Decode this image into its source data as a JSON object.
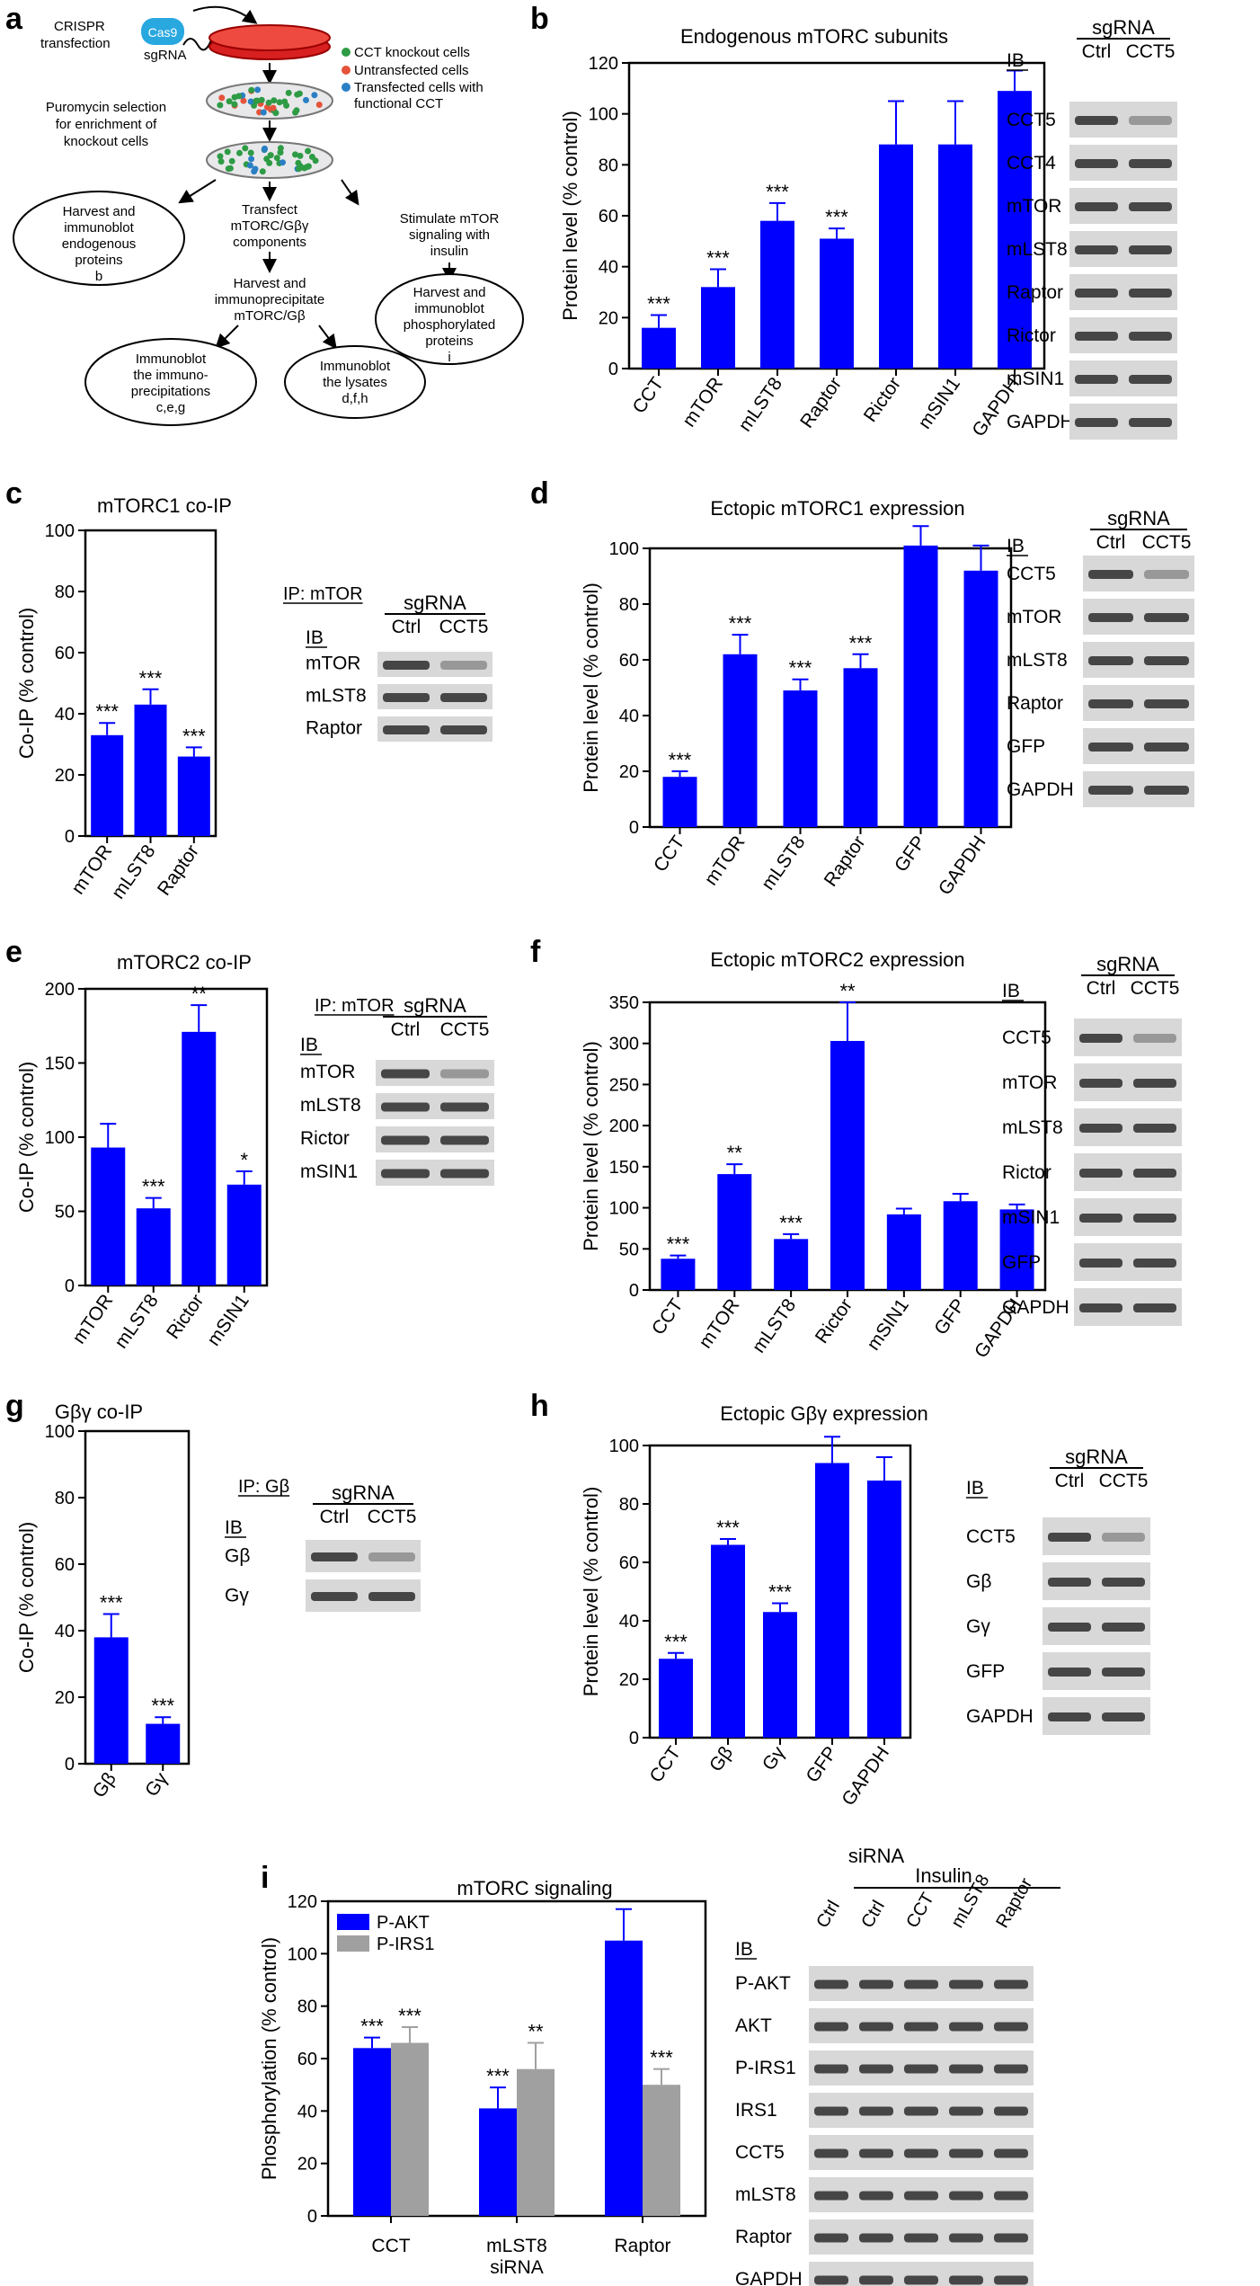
{
  "panel_letters": [
    "a",
    "b",
    "c",
    "d",
    "e",
    "f",
    "g",
    "h",
    "i"
  ],
  "workflow": {
    "crispr": [
      "CRISPR",
      "transfection"
    ],
    "cas9": "Cas9",
    "sgrna": "sgRNA",
    "legend": [
      "CCT knockout cells",
      "Untransfected cells",
      "Transfected cells with",
      "functional CCT"
    ],
    "legend_colors": [
      "#2e9b45",
      "#e5533a",
      "#2a7fc4"
    ],
    "puromycin": [
      "Puromycin selection",
      "for enrichment of",
      "knockout cells"
    ],
    "transfect": [
      "Transfect",
      "mTORC/Gβγ",
      "components"
    ],
    "harvest_ip": [
      "Harvest and",
      "immunoprecipitate",
      "mTORC/Gβ"
    ],
    "stim": [
      "Stimulate mTOR",
      "signaling with",
      "insulin"
    ],
    "oval_endog": [
      "Harvest and",
      "immunoblot",
      "endogenous",
      "proteins",
      "b"
    ],
    "oval_phos": [
      "Harvest and",
      "immunoblot",
      "phosphorylated",
      "proteins",
      "i"
    ],
    "oval_ip": [
      "Immunoblot",
      "the immuno-",
      "precipitations",
      "c,e,g"
    ],
    "oval_lys": [
      "Immunoblot",
      "the lysates",
      "d,f,h"
    ]
  },
  "blots": {
    "b": {
      "header": "sgRNA",
      "ib": "IB",
      "cols": [
        "Ctrl",
        "CCT5"
      ],
      "rows": [
        "CCT5",
        "CCT4",
        "mTOR",
        "mLST8",
        "Raptor",
        "Rictor",
        "mSIN1",
        "GAPDH"
      ]
    },
    "c": {
      "ip": "IP: mTOR",
      "header": "sgRNA",
      "ib": "IB",
      "cols": [
        "Ctrl",
        "CCT5"
      ],
      "rows": [
        "mTOR",
        "mLST8",
        "Raptor"
      ]
    },
    "d": {
      "header": "sgRNA",
      "ib": "IB",
      "cols": [
        "Ctrl",
        "CCT5"
      ],
      "rows": [
        "CCT5",
        "mTOR",
        "mLST8",
        "Raptor",
        "GFP",
        "GAPDH"
      ]
    },
    "e": {
      "ip": "IP: mTOR",
      "header": "sgRNA",
      "ib": "IB",
      "cols": [
        "Ctrl",
        "CCT5"
      ],
      "rows": [
        "mTOR",
        "mLST8",
        "Rictor",
        "mSIN1"
      ]
    },
    "f": {
      "header": "sgRNA",
      "ib": "IB",
      "cols": [
        "Ctrl",
        "CCT5"
      ],
      "rows": [
        "CCT5",
        "mTOR",
        "mLST8",
        "Rictor",
        "mSIN1",
        "GFP",
        "GAPDH"
      ]
    },
    "g": {
      "ip": "IP: Gβ",
      "header": "sgRNA",
      "ib": "IB",
      "cols": [
        "Ctrl",
        "CCT5"
      ],
      "rows": [
        "Gβ",
        "Gγ"
      ]
    },
    "h": {
      "header": "sgRNA",
      "ib": "IB",
      "cols": [
        "Ctrl",
        "CCT5"
      ],
      "rows": [
        "CCT5",
        "Gβ",
        "Gγ",
        "GFP",
        "GAPDH"
      ]
    },
    "i": {
      "header": "siRNA",
      "sub": "Insulin",
      "ib": "IB",
      "cols": [
        "Ctrl",
        "Ctrl",
        "CCT",
        "mLST8",
        "Raptor"
      ],
      "rows": [
        "P-AKT",
        "AKT",
        "P-IRS1",
        "IRS1",
        "CCT5",
        "mLST8",
        "Raptor",
        "GAPDH"
      ]
    }
  },
  "chart_data": [
    {
      "id": "b",
      "type": "bar",
      "title": "Endogenous mTORC subunits",
      "ylabel": "Protein level (% control)",
      "ylim": [
        0,
        120
      ],
      "yticks": [
        0,
        20,
        40,
        60,
        80,
        100,
        120
      ],
      "categories": [
        "CCT",
        "mTOR",
        "mLST8",
        "Raptor",
        "Rictor",
        "mSIN1",
        "GAPDH"
      ],
      "values": [
        16,
        32,
        58,
        51,
        88,
        88,
        109
      ],
      "errors": [
        5,
        7,
        7,
        4,
        17,
        17,
        8
      ],
      "sig": [
        "***",
        "***",
        "***",
        "***",
        "",
        "",
        ""
      ],
      "color": "#0000ff"
    },
    {
      "id": "c",
      "type": "bar",
      "title": "mTORC1 co-IP",
      "ylabel": "Co-IP (% control)",
      "ylim": [
        0,
        100
      ],
      "yticks": [
        0,
        20,
        40,
        60,
        80,
        100
      ],
      "categories": [
        "mTOR",
        "mLST8",
        "Raptor"
      ],
      "values": [
        33,
        43,
        26
      ],
      "errors": [
        4,
        5,
        3
      ],
      "sig": [
        "***",
        "***",
        "***"
      ],
      "color": "#0000ff"
    },
    {
      "id": "d",
      "type": "bar",
      "title": "Ectopic mTORC1 expression",
      "ylabel": "Protein level (% control)",
      "ylim": [
        0,
        100
      ],
      "yticks": [
        0,
        20,
        40,
        60,
        80,
        100
      ],
      "categories": [
        "CCT",
        "mTOR",
        "mLST8",
        "Raptor",
        "GFP",
        "GAPDH"
      ],
      "values": [
        18,
        62,
        49,
        57,
        101,
        92
      ],
      "errors": [
        2,
        7,
        4,
        5,
        7,
        9
      ],
      "sig": [
        "***",
        "***",
        "***",
        "***",
        "",
        ""
      ],
      "color": "#0000ff"
    },
    {
      "id": "e",
      "type": "bar",
      "title": "mTORC2 co-IP",
      "ylabel": "Co-IP (% control)",
      "ylim": [
        0,
        200
      ],
      "yticks": [
        0,
        50,
        100,
        150,
        200
      ],
      "categories": [
        "mTOR",
        "mLST8",
        "Rictor",
        "mSIN1"
      ],
      "values": [
        93,
        52,
        171,
        68
      ],
      "errors": [
        16,
        7,
        18,
        9
      ],
      "sig": [
        "",
        "***",
        "**",
        "*"
      ],
      "color": "#0000ff"
    },
    {
      "id": "f",
      "type": "bar",
      "title": "Ectopic mTORC2 expression",
      "ylabel": "Protein level (% control)",
      "ylim": [
        0,
        350
      ],
      "yticks": [
        0,
        50,
        100,
        150,
        200,
        250,
        300,
        350
      ],
      "categories": [
        "CCT",
        "mTOR",
        "mLST8",
        "Rictor",
        "mSIN1",
        "GFP",
        "GAPDH"
      ],
      "values": [
        38,
        141,
        62,
        303,
        92,
        108,
        98
      ],
      "errors": [
        4,
        12,
        6,
        47,
        7,
        9,
        6
      ],
      "sig": [
        "***",
        "**",
        "***",
        "**",
        "",
        "",
        ""
      ],
      "color": "#0000ff"
    },
    {
      "id": "g",
      "type": "bar",
      "title": "Gβγ co-IP",
      "ylabel": "Co-IP (% control)",
      "ylim": [
        0,
        100
      ],
      "yticks": [
        0,
        20,
        40,
        60,
        80,
        100
      ],
      "categories": [
        "Gβ",
        "Gγ"
      ],
      "values": [
        38,
        12
      ],
      "errors": [
        7,
        2
      ],
      "sig": [
        "***",
        "***"
      ],
      "color": "#0000ff"
    },
    {
      "id": "h",
      "type": "bar",
      "title": "Ectopic Gβγ expression",
      "ylabel": "Protein level (% control)",
      "ylim": [
        0,
        100
      ],
      "yticks": [
        0,
        20,
        40,
        60,
        80,
        100
      ],
      "categories": [
        "CCT",
        "Gβ",
        "Gγ",
        "GFP",
        "GAPDH"
      ],
      "values": [
        27,
        66,
        43,
        94,
        88
      ],
      "errors": [
        2,
        2,
        3,
        9,
        8
      ],
      "sig": [
        "***",
        "***",
        "***",
        "",
        ""
      ],
      "color": "#0000ff"
    },
    {
      "id": "i",
      "type": "bar",
      "title": "mTORC signaling",
      "ylabel": "Phosphorylation (% control)",
      "xlabel": "siRNA",
      "ylim": [
        0,
        120
      ],
      "yticks": [
        0,
        20,
        40,
        60,
        80,
        100,
        120
      ],
      "categories": [
        "CCT",
        "mLST8",
        "Raptor"
      ],
      "series": [
        {
          "name": "P-AKT",
          "values": [
            64,
            41,
            105
          ],
          "errors": [
            4,
            8,
            12
          ],
          "sig": [
            "***",
            "***",
            ""
          ],
          "color": "#0000ff"
        },
        {
          "name": "P-IRS1",
          "values": [
            66,
            56,
            50
          ],
          "errors": [
            6,
            10,
            6
          ],
          "sig": [
            "***",
            "**",
            "***"
          ],
          "color": "#a0a0a0"
        }
      ]
    }
  ]
}
